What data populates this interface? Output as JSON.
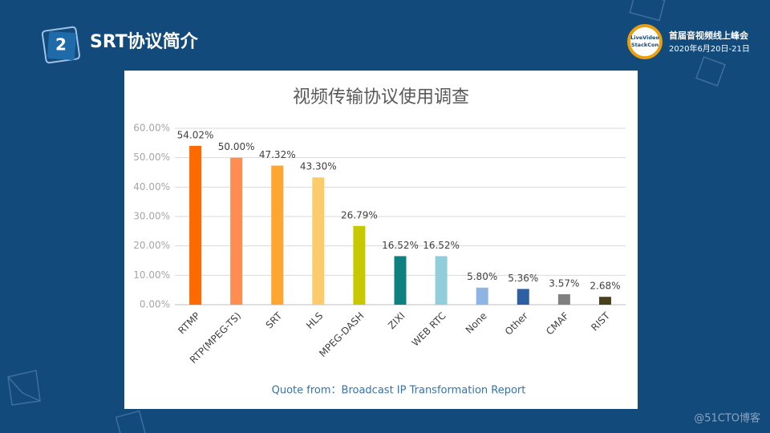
{
  "slide": {
    "number": "2",
    "title": "SRT协议简介",
    "logo_lines": [
      "LiveVideo",
      "StackCon"
    ],
    "event": "首届音视频线上峰会",
    "date": "2020年6月20日-21日",
    "watermark": "@51CTO博客"
  },
  "chart_data": {
    "type": "bar",
    "title": "视频传输协议使用调查",
    "categories": [
      "RTMP",
      "RTP(MPEG-TS)",
      "SRT",
      "HLS",
      "MPEG-DASH",
      "ZIXI",
      "WEB RTC",
      "None",
      "Other",
      "CMAF",
      "RIST"
    ],
    "values": [
      54.02,
      50.0,
      47.32,
      43.3,
      26.79,
      16.52,
      16.52,
      5.8,
      5.36,
      3.57,
      2.68
    ],
    "value_labels": [
      "54.02%",
      "50.00%",
      "47.32%",
      "43.30%",
      "26.79%",
      "16.52%",
      "16.52%",
      "5.80%",
      "5.36%",
      "3.57%",
      "2.68%"
    ],
    "colors": [
      "#ff6a00",
      "#ff8c50",
      "#ffa630",
      "#fccb6b",
      "#c8c800",
      "#0e8080",
      "#92cddc",
      "#8eb4e3",
      "#2e5fa3",
      "#808080",
      "#4a3f1f"
    ],
    "ylim": [
      0,
      60
    ],
    "yticks": [
      {
        "value": 0,
        "label": "0.00%"
      },
      {
        "value": 10,
        "label": "10.00%"
      },
      {
        "value": 20,
        "label": "20.00%"
      },
      {
        "value": 30,
        "label": "30.00%"
      },
      {
        "value": 40,
        "label": "40.00%"
      },
      {
        "value": 50,
        "label": "50.00%"
      },
      {
        "value": 60,
        "label": "60.00%"
      }
    ],
    "grid": true,
    "note": "Quote from：Broadcast IP Transformation Report"
  }
}
